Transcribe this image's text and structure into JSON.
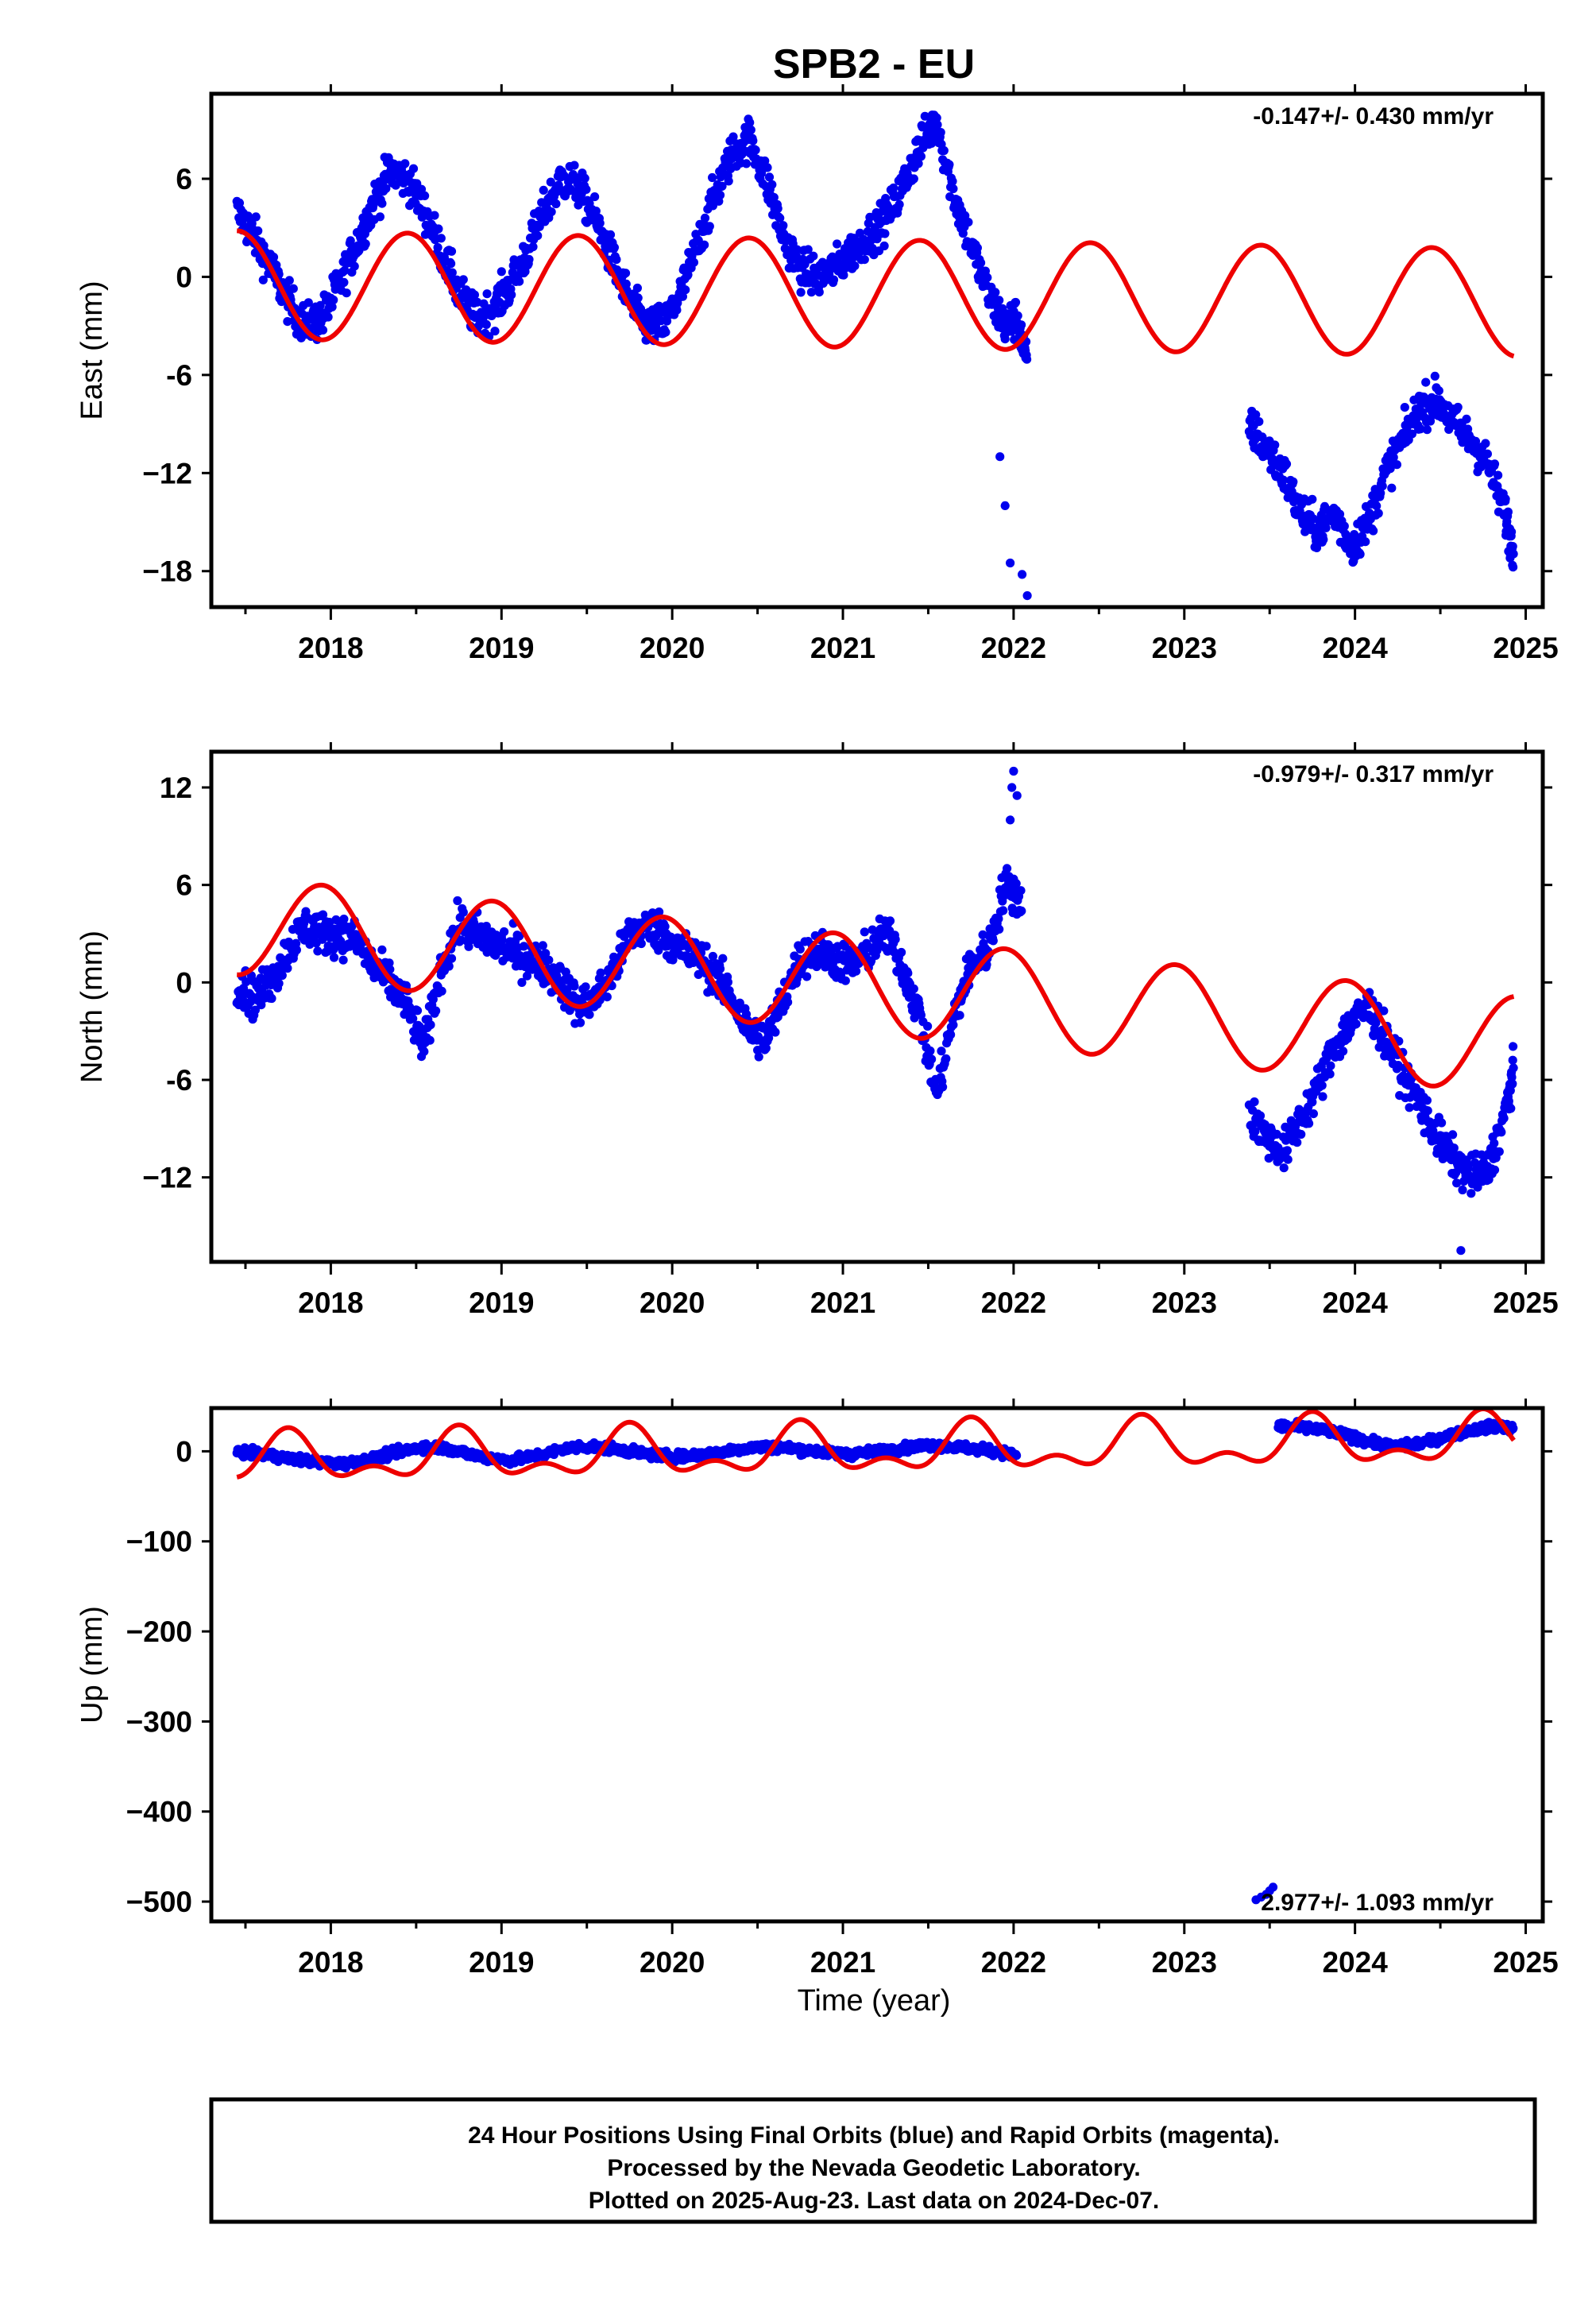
{
  "title": "SPB2 - EU",
  "colors": {
    "data_points": "#0000ee",
    "model_curve": "#ee0000",
    "frame": "#000000"
  },
  "x_axis": {
    "label": "Time (year)",
    "range": [
      2017.3,
      2025.1
    ],
    "ticks": [
      2018,
      2019,
      2020,
      2021,
      2022,
      2023,
      2024,
      2025
    ],
    "tick_labels": [
      "2018",
      "2019",
      "2020",
      "2021",
      "2022",
      "2023",
      "2024",
      "2025"
    ],
    "minor_ticks": [
      2017.5,
      2018.5,
      2019.5,
      2020.5,
      2021.5,
      2022.5,
      2023.5,
      2024.5
    ]
  },
  "chart_data": [
    {
      "type": "scatter",
      "ylabel": "East (mm)",
      "ylim": [
        -20.2,
        11.2
      ],
      "yticks": [
        6,
        0,
        -6,
        -12,
        -18
      ],
      "ytick_labels": [
        "6",
        "0",
        "-6",
        "−12",
        "−18"
      ],
      "rate_text": "-0.147+/- 0.430 mm/yr",
      "rate_position": "top-right",
      "series": [
        {
          "marker": "dot",
          "x": [
            2017.45,
            2017.55,
            2017.65,
            2017.75,
            2017.85,
            2017.95,
            2018.05,
            2018.15,
            2018.25,
            2018.35,
            2018.45,
            2018.55,
            2018.65,
            2018.75,
            2018.85,
            2018.95,
            2019.05,
            2019.15,
            2019.25,
            2019.35,
            2019.45,
            2019.55,
            2019.65,
            2019.75,
            2019.85,
            2019.95,
            2020.05,
            2020.15,
            2020.25,
            2020.35,
            2020.45,
            2020.55,
            2020.65,
            2020.75,
            2020.85,
            2020.95,
            2021.05,
            2021.15,
            2021.25,
            2021.35,
            2021.45,
            2021.55,
            2021.65,
            2021.75,
            2021.85,
            2021.95,
            2022.02,
            2022.08,
            2023.38,
            2023.48,
            2023.58,
            2023.68,
            2023.78,
            2023.88,
            2023.98,
            2024.08,
            2024.18,
            2024.28,
            2024.38,
            2024.48,
            2024.58,
            2024.68,
            2024.78,
            2024.88,
            2024.93
          ],
          "y": [
            4.0,
            2.5,
            0.5,
            -1.5,
            -3.0,
            -2.5,
            -0.5,
            2.0,
            4.5,
            6.5,
            6.0,
            4.0,
            1.5,
            -1.0,
            -2.5,
            -2.0,
            -0.5,
            1.5,
            4.0,
            6.0,
            5.5,
            3.5,
            1.0,
            -1.5,
            -3.0,
            -3.0,
            -1.0,
            2.0,
            5.0,
            7.5,
            8.5,
            6.0,
            2.5,
            0.5,
            0.0,
            0.5,
            1.5,
            2.5,
            3.5,
            5.5,
            8.0,
            9.5,
            5.0,
            2.0,
            -1.0,
            -3.0,
            -2.5,
            -5.5,
            -9.0,
            -10.5,
            -12.0,
            -14.5,
            -15.5,
            -14.5,
            -16.5,
            -15.0,
            -12.0,
            -10.0,
            -8.0,
            -7.5,
            -9.0,
            -10.0,
            -11.5,
            -14.5,
            -17.0
          ],
          "outliers_x": [
            2021.92,
            2021.95,
            2021.98,
            2022.05,
            2022.08
          ],
          "outliers_y": [
            -11.0,
            -14.0,
            -17.5,
            -18.2,
            -19.5
          ]
        },
        {
          "marker": "line",
          "model": {
            "offset": -1.0,
            "rate": -0.147,
            "ref_year": 2021.0,
            "annual_amp": 3.3,
            "annual_peak": 2017.45
          },
          "x_range": [
            2017.45,
            2024.93
          ]
        }
      ]
    },
    {
      "type": "scatter",
      "ylabel": "North (mm)",
      "ylim": [
        -17.2,
        14.2
      ],
      "yticks": [
        12,
        6,
        0,
        -6,
        -12
      ],
      "ytick_labels": [
        "12",
        "6",
        "0",
        "-6",
        "−12"
      ],
      "rate_text": "-0.979+/- 0.317 mm/yr",
      "rate_position": "top-right",
      "series": [
        {
          "marker": "dot",
          "x": [
            2017.45,
            2017.55,
            2017.65,
            2017.75,
            2017.85,
            2017.95,
            2018.05,
            2018.15,
            2018.25,
            2018.35,
            2018.45,
            2018.55,
            2018.65,
            2018.75,
            2018.85,
            2018.95,
            2019.05,
            2019.15,
            2019.25,
            2019.35,
            2019.45,
            2019.55,
            2019.65,
            2019.75,
            2019.85,
            2019.95,
            2020.05,
            2020.15,
            2020.25,
            2020.35,
            2020.45,
            2020.55,
            2020.65,
            2020.75,
            2020.85,
            2020.95,
            2021.05,
            2021.15,
            2021.25,
            2021.35,
            2021.45,
            2021.55,
            2021.65,
            2021.75,
            2021.85,
            2021.95,
            2022.05,
            2023.38,
            2023.48,
            2023.58,
            2023.68,
            2023.78,
            2023.88,
            2023.98,
            2024.08,
            2024.18,
            2024.28,
            2024.38,
            2024.48,
            2024.58,
            2024.68,
            2024.78,
            2024.88,
            2024.93
          ],
          "y": [
            0.0,
            -1.0,
            0.0,
            2.0,
            3.5,
            3.0,
            3.0,
            2.5,
            1.0,
            0.0,
            -1.5,
            -4.0,
            1.0,
            3.5,
            3.0,
            2.5,
            2.0,
            1.5,
            1.0,
            0.0,
            -1.5,
            -1.0,
            0.5,
            3.0,
            3.5,
            3.0,
            2.0,
            1.5,
            0.5,
            -1.0,
            -3.0,
            -3.5,
            -1.0,
            1.5,
            2.0,
            1.5,
            1.0,
            2.0,
            3.0,
            1.0,
            -2.0,
            -7.0,
            -2.0,
            1.0,
            2.0,
            6.0,
            5.0,
            -8.0,
            -9.5,
            -10.5,
            -8.5,
            -6.5,
            -4.0,
            -2.5,
            -1.5,
            -3.5,
            -5.5,
            -7.5,
            -9.5,
            -11.0,
            -12.0,
            -11.5,
            -8.0,
            -5.5
          ],
          "outliers_x": [
            2021.98,
            2021.99,
            2022.0,
            2022.02,
            2024.62
          ],
          "outliers_y": [
            10.0,
            12.0,
            13.0,
            11.5,
            -16.5
          ]
        },
        {
          "marker": "line",
          "model": {
            "offset": 0.0,
            "rate": -0.979,
            "ref_year": 2021.0,
            "annual_amp": 3.0,
            "annual_peak": 2017.95
          },
          "x_range": [
            2017.45,
            2024.93
          ]
        }
      ]
    },
    {
      "type": "scatter",
      "ylabel": "Up (mm)",
      "ylim": [
        -522,
        48
      ],
      "yticks": [
        0,
        -100,
        -200,
        -300,
        -400,
        -500
      ],
      "ytick_labels": [
        "0",
        "−100",
        "−200",
        "−300",
        "−400",
        "−500"
      ],
      "rate_text": "2.977+/- 1.093 mm/yr",
      "rate_position": "bottom-right",
      "series": [
        {
          "marker": "dot",
          "x": [
            2017.45,
            2017.55,
            2017.65,
            2017.75,
            2017.85,
            2017.95,
            2018.05,
            2018.15,
            2018.25,
            2018.35,
            2018.45,
            2018.55,
            2018.65,
            2018.75,
            2018.85,
            2018.95,
            2019.05,
            2019.15,
            2019.25,
            2019.35,
            2019.45,
            2019.55,
            2019.65,
            2019.75,
            2019.85,
            2019.95,
            2020.05,
            2020.15,
            2020.25,
            2020.35,
            2020.45,
            2020.55,
            2020.65,
            2020.75,
            2020.85,
            2020.95,
            2021.05,
            2021.15,
            2021.25,
            2021.35,
            2021.45,
            2021.55,
            2021.65,
            2021.75,
            2021.85,
            2021.95,
            2022.02,
            2023.55,
            2023.65,
            2023.75,
            2023.85,
            2023.95,
            2024.05,
            2024.15,
            2024.25,
            2024.35,
            2024.45,
            2024.55,
            2024.65,
            2024.75,
            2024.85,
            2024.93
          ],
          "y": [
            0,
            -3,
            -5,
            -8,
            -10,
            -12,
            -14,
            -12,
            -8,
            -3,
            2,
            5,
            4,
            0,
            -5,
            -8,
            -10,
            -7,
            -3,
            2,
            5,
            5,
            3,
            0,
            -3,
            -5,
            -6,
            -4,
            -2,
            1,
            4,
            5,
            4,
            2,
            0,
            -2,
            -3,
            -1,
            1,
            3,
            6,
            7,
            5,
            3,
            1,
            -2,
            -5,
            28,
            27,
            25,
            22,
            18,
            12,
            8,
            5,
            8,
            12,
            18,
            22,
            26,
            28,
            25
          ],
          "outliers_x": [
            2023.42,
            2023.45,
            2023.48,
            2023.5,
            2023.52
          ],
          "outliers_y": [
            -498,
            -495,
            -492,
            -488,
            -484
          ]
        },
        {
          "marker": "line",
          "model": {
            "offset": 0.0,
            "rate": 2.977,
            "ref_year": 2021.0,
            "annual_amp": 22.0,
            "annual_peak": 2017.75,
            "semi_amp": 14.0,
            "semi_peak": 2017.75
          },
          "x_range": [
            2017.45,
            2024.93
          ]
        }
      ]
    }
  ],
  "caption": {
    "lines": [
      "24 Hour Positions Using Final Orbits (blue) and Rapid Orbits (magenta).",
      "Processed by the Nevada Geodetic Laboratory.",
      "Plotted on 2025-Aug-23. Last data on 2024-Dec-07."
    ]
  }
}
